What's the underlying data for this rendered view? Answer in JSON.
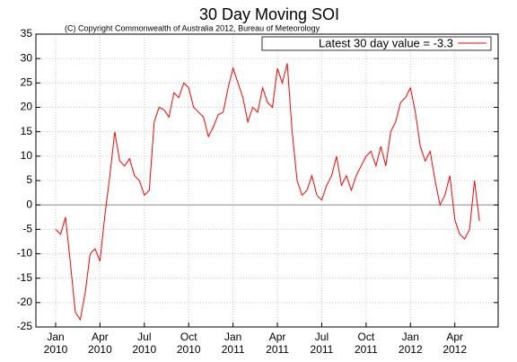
{
  "chart_data": {
    "type": "line",
    "title": "30 Day Moving SOI",
    "subtitle": "(C) Copyright Commonwealth of Australia 2012, Bureau of Meteorology",
    "categories": [
      "Jan 2010",
      null,
      null,
      null,
      null,
      null,
      null,
      null,
      null,
      "Apr 2010",
      null,
      null,
      null,
      null,
      null,
      null,
      null,
      null,
      "Jul 2010",
      null,
      null,
      null,
      null,
      null,
      null,
      null,
      null,
      "Oct 2010",
      null,
      null,
      null,
      null,
      null,
      null,
      null,
      null,
      "Jan 2011",
      null,
      null,
      null,
      null,
      null,
      null,
      null,
      null,
      "Apr 2011",
      null,
      null,
      null,
      null,
      null,
      null,
      null,
      null,
      "Jul 2011",
      null,
      null,
      null,
      null,
      null,
      null,
      null,
      null,
      "Oct 2011",
      null,
      null,
      null,
      null,
      null,
      null,
      null,
      null,
      "Jan 2012",
      null,
      null,
      null,
      null,
      null,
      null,
      null,
      null,
      "Apr 2012",
      null,
      null,
      null,
      null,
      null
    ],
    "series": [
      {
        "name": "Latest 30 day value = -3.3",
        "color": "#ff0000",
        "values": [
          -5,
          -6,
          -2.5,
          -12,
          -22,
          -23.5,
          -18,
          -10,
          -9,
          -11.5,
          -2,
          6,
          15,
          9,
          8,
          9.5,
          6,
          5,
          2,
          3,
          17,
          20,
          19.5,
          18,
          23,
          22,
          25,
          24,
          20,
          19,
          18,
          14,
          16,
          18.5,
          19,
          24,
          28,
          25,
          22,
          17,
          20,
          19,
          24,
          21,
          20,
          28,
          25,
          29,
          15,
          5,
          2,
          3,
          6,
          2,
          1,
          4,
          6,
          10,
          4,
          6,
          3,
          6,
          8,
          10,
          11,
          8,
          12,
          8,
          15,
          17,
          21,
          22,
          24,
          19,
          12,
          9,
          11,
          5,
          0,
          2,
          6,
          -3,
          -6,
          -7,
          -5,
          5,
          -3.3
        ]
      }
    ],
    "ylim": [
      -25,
      35
    ],
    "yticks": [
      -25,
      -20,
      -15,
      -10,
      -5,
      0,
      5,
      10,
      15,
      20,
      25,
      30,
      35
    ],
    "grid": true,
    "legend": "upper right"
  }
}
